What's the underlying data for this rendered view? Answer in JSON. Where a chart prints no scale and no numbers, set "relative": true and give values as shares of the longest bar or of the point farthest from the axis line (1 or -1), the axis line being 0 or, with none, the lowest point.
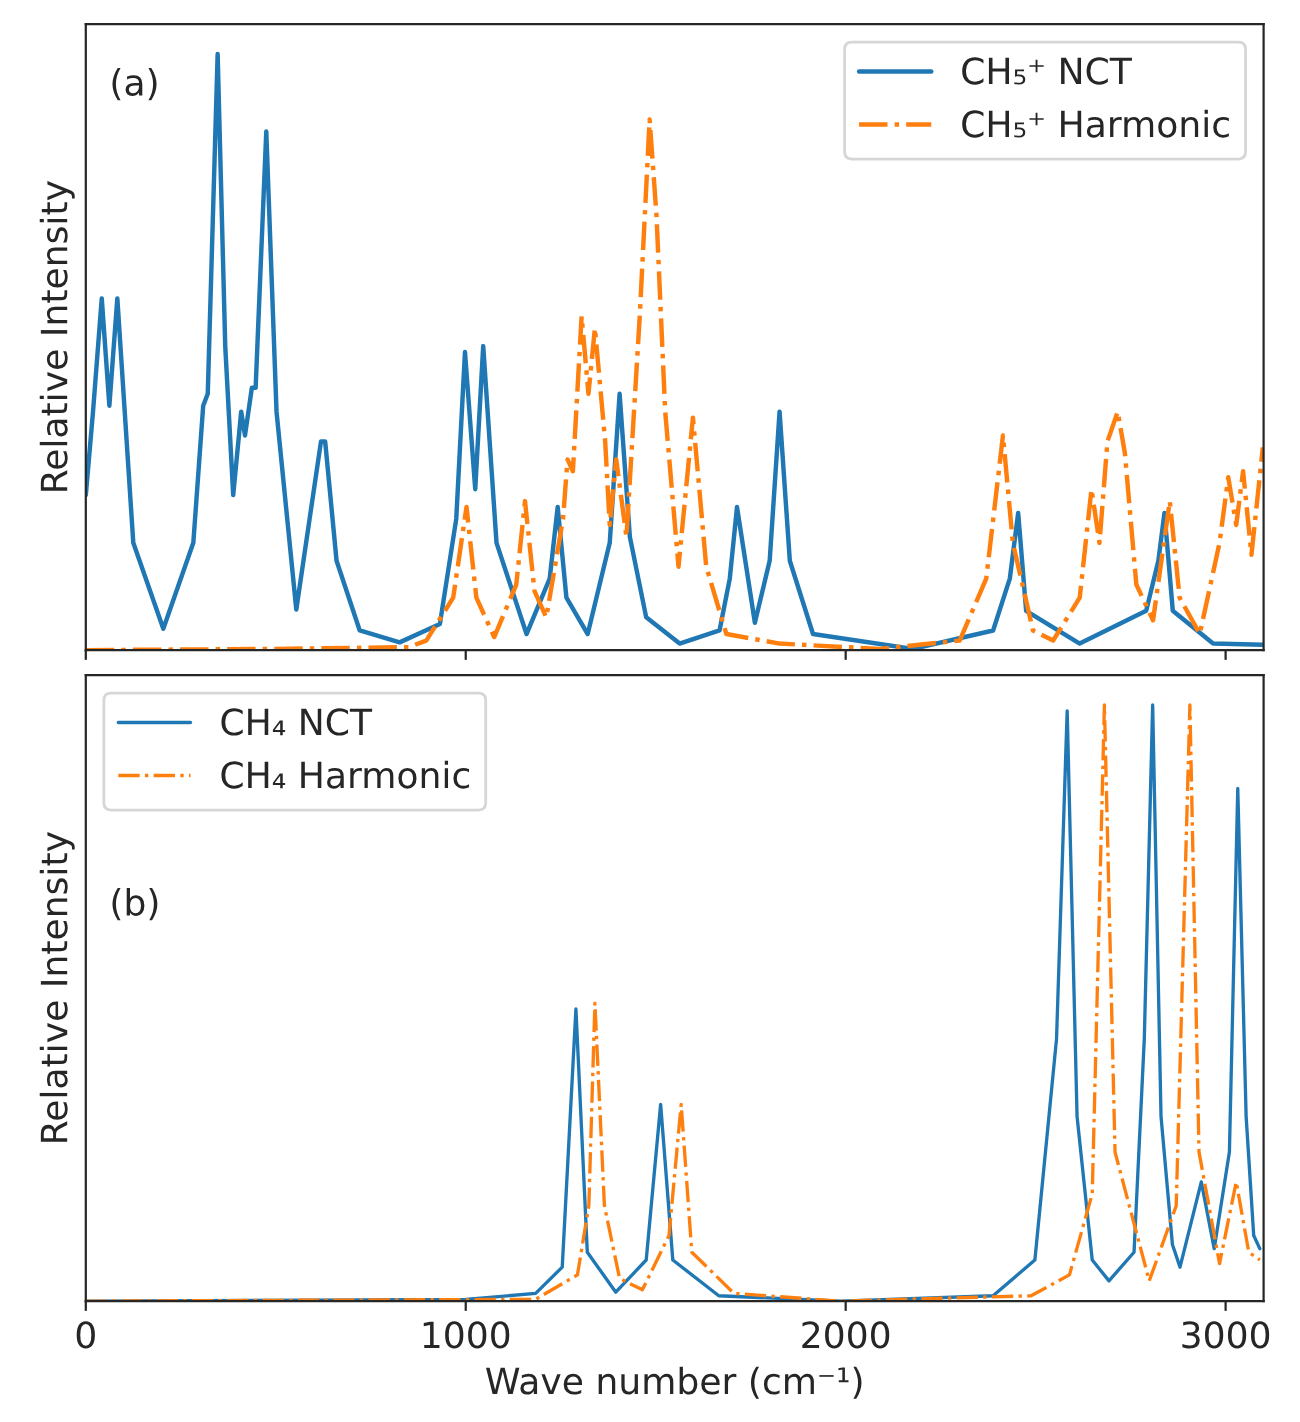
{
  "chart_data": [
    {
      "type": "line",
      "relative": true,
      "xlim": [
        0,
        3100
      ],
      "xticks": [
        0,
        1000,
        2000,
        3000
      ],
      "tick_labels": false,
      "ylabel": "Relative Intensity",
      "legend": "top right",
      "grid": false,
      "annotations": [
        "(a)"
      ],
      "series": [
        {
          "name": "CH₅⁺ NCT",
          "color": "#1f77b4",
          "line_style": "solid",
          "x": [
            0,
            19,
            42,
            62,
            83,
            125,
            204,
            283,
            309,
            321,
            347,
            367,
            388,
            409,
            419,
            437,
            447,
            475,
            502,
            554,
            589,
            619,
            630,
            660,
            721,
            826,
            932,
            975,
            998,
            1025,
            1046,
            1081,
            1160,
            1221,
            1242,
            1265,
            1321,
            1379,
            1405,
            1432,
            1475,
            1563,
            1668,
            1695,
            1714,
            1761,
            1800,
            1826,
            1853,
            1914,
            2177,
            2388,
            2432,
            2454,
            2475,
            2616,
            2791,
            2823,
            2839,
            2861,
            2967,
            3098
          ],
          "values": [
            0.26,
            0.4,
            0.59,
            0.41,
            0.59,
            0.18,
            0.036,
            0.18,
            0.41,
            0.43,
            1.0,
            0.51,
            0.26,
            0.4,
            0.36,
            0.44,
            0.44,
            0.87,
            0.4,
            0.068,
            0.22,
            0.35,
            0.35,
            0.15,
            0.033,
            0.013,
            0.044,
            0.22,
            0.5,
            0.27,
            0.51,
            0.18,
            0.027,
            0.12,
            0.24,
            0.088,
            0.027,
            0.18,
            0.43,
            0.19,
            0.055,
            0.011,
            0.033,
            0.12,
            0.24,
            0.046,
            0.15,
            0.4,
            0.15,
            0.027,
            0.002,
            0.033,
            0.12,
            0.23,
            0.066,
            0.011,
            0.066,
            0.15,
            0.23,
            0.066,
            0.011,
            0.009
          ]
        },
        {
          "name": "CH₅⁺ Harmonic",
          "color": "#ff7f0e",
          "line_style": "dashdot",
          "x": [
            0,
            500,
            850,
            896,
            967,
            1002,
            1028,
            1075,
            1133,
            1156,
            1181,
            1212,
            1256,
            1268,
            1282,
            1305,
            1323,
            1340,
            1367,
            1379,
            1396,
            1423,
            1458,
            1484,
            1502,
            1525,
            1560,
            1598,
            1633,
            1686,
            1826,
            2089,
            2300,
            2370,
            2414,
            2440,
            2493,
            2546,
            2616,
            2647,
            2668,
            2689,
            2716,
            2735,
            2765,
            2809,
            2853,
            2879,
            2932,
            2984,
            3007,
            3028,
            3046,
            3068,
            3098
          ],
          "values": [
            0.0,
            0.002,
            0.005,
            0.016,
            0.088,
            0.24,
            0.088,
            0.022,
            0.11,
            0.25,
            0.099,
            0.055,
            0.22,
            0.32,
            0.3,
            0.56,
            0.43,
            0.54,
            0.35,
            0.21,
            0.32,
            0.19,
            0.56,
            0.89,
            0.73,
            0.4,
            0.14,
            0.39,
            0.14,
            0.027,
            0.011,
            0.002,
            0.016,
            0.12,
            0.36,
            0.18,
            0.033,
            0.016,
            0.088,
            0.27,
            0.18,
            0.35,
            0.4,
            0.33,
            0.11,
            0.05,
            0.25,
            0.088,
            0.027,
            0.18,
            0.29,
            0.21,
            0.3,
            0.16,
            0.34
          ]
        }
      ]
    },
    {
      "type": "line",
      "relative": true,
      "xlim": [
        0,
        3100
      ],
      "xticks": [
        0,
        1000,
        2000,
        3000
      ],
      "tick_labels": "x",
      "xlabel": "Wave number (cm⁻¹)",
      "ylabel": "Relative Intensity",
      "legend": "top left",
      "grid": false,
      "annotations": [
        "(b)"
      ],
      "series": [
        {
          "name": "CH₄ NCT",
          "color": "#1f77b4",
          "line_style": "solid",
          "x": [
            0,
            1000,
            1184,
            1254,
            1290,
            1320,
            1395,
            1475,
            1513,
            1545,
            1666,
            1987,
            2388,
            2498,
            2555,
            2583,
            2609,
            2649,
            2693,
            2759,
            2786,
            2808,
            2830,
            2860,
            2880,
            2936,
            2970,
            3010,
            3032,
            3054,
            3074,
            3090
          ],
          "values": [
            0.0,
            0.003,
            0.013,
            0.057,
            0.49,
            0.082,
            0.015,
            0.069,
            0.33,
            0.069,
            0.009,
            0.0,
            0.009,
            0.069,
            0.44,
            0.99,
            0.31,
            0.069,
            0.034,
            0.082,
            0.44,
            1.0,
            0.31,
            0.095,
            0.057,
            0.2,
            0.088,
            0.25,
            0.86,
            0.31,
            0.11,
            0.088
          ]
        },
        {
          "name": "CH₄ Harmonic",
          "color": "#ff7f0e",
          "line_style": "dashdot",
          "x": [
            0,
            1184,
            1294,
            1324,
            1340,
            1365,
            1405,
            1465,
            1535,
            1567,
            1595,
            1706,
            1987,
            2488,
            2589,
            2649,
            2681,
            2709,
            2799,
            2870,
            2906,
            2930,
            2984,
            3028,
            3061,
            3090
          ],
          "values": [
            0.0,
            0.003,
            0.044,
            0.16,
            0.5,
            0.16,
            0.038,
            0.019,
            0.11,
            0.33,
            0.082,
            0.013,
            0.0,
            0.009,
            0.044,
            0.18,
            1.0,
            0.25,
            0.034,
            0.16,
            1.0,
            0.25,
            0.063,
            0.2,
            0.082,
            0.069
          ]
        }
      ]
    }
  ]
}
